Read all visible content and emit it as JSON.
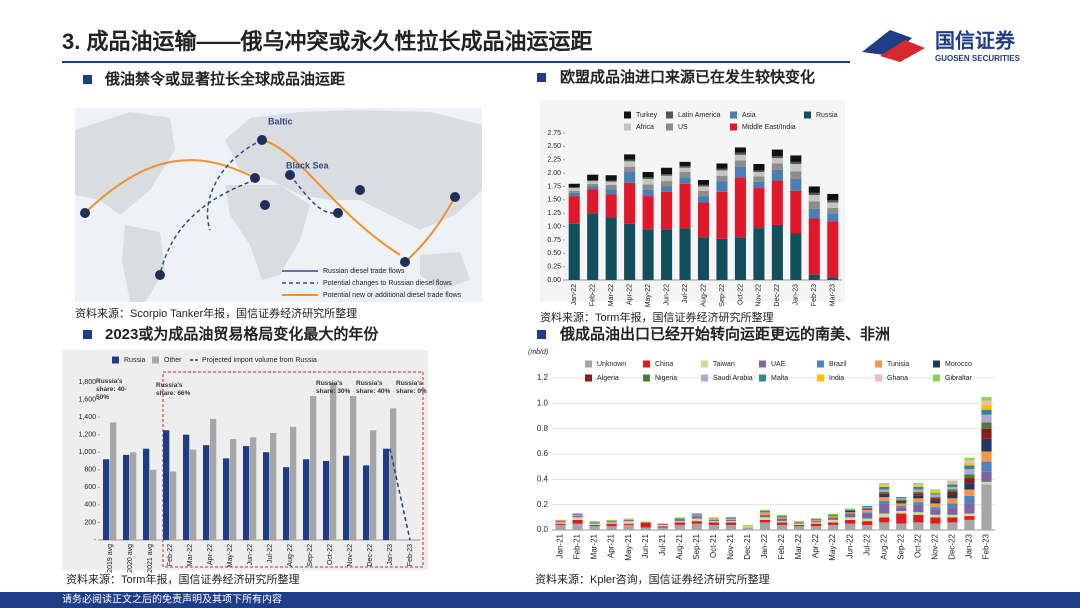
{
  "header": {
    "title": "3. 成品油运输——俄乌冲突或永久性拉长成品油运运距"
  },
  "logo": {
    "name": "国信证券",
    "english": "GUOSEN SECURITIES"
  },
  "footer": "请务必阅读正文之后的免责声明及其项下所有内容",
  "panels": [
    {
      "heading": "俄油禁令或显著拉长全球成品油运距",
      "source": "资料来源：Scorpio Tanker年报，国信证券经济研究所整理"
    },
    {
      "heading": "欧盟成品油进口来源已在发生较快变化",
      "source": "资料来源：Torm年报，国信证券经济研究所整理"
    },
    {
      "heading": "2023或为成品油贸易格局变化最大的年份",
      "source": "资料来源：Torm年报，国信证券经济研究所整理"
    },
    {
      "heading": "俄成品油出口已经开始转向运距更远的南美、非洲",
      "source": "资料来源：Kpler咨询，国信证券经济研究所整理"
    }
  ],
  "map": {
    "labels": [
      "Baltic",
      "Black Sea"
    ],
    "legend": [
      "Russian diesel trade flows",
      "Potential changes to Russian diesel flows",
      "Potential new or additional diesel trade flows"
    ]
  },
  "chart_data": [
    {
      "type": "bar",
      "stacked": true,
      "grid": false,
      "categories": [
        "Jan-22",
        "Feb-22",
        "Mar-22",
        "Apr-22",
        "May-22",
        "Jun-22",
        "Jul-22",
        "Aug-22",
        "Sep-22",
        "Oct-22",
        "Nov-22",
        "Dec-22",
        "Jan-23",
        "Feb-23",
        "Mar-23"
      ],
      "ylim": [
        0,
        2.75
      ],
      "yticks": [
        {
          "value": 0,
          "label": "0.00"
        },
        0.25,
        {
          "value": 0.5,
          "label": "0.50"
        },
        0.75,
        {
          "value": 1,
          "label": "1.00"
        },
        1.25,
        {
          "value": 1.5,
          "label": "1.50"
        },
        1.75,
        {
          "value": 2,
          "label": "2.00"
        },
        2.25,
        {
          "value": 2.5,
          "label": "2.50"
        },
        2.75
      ],
      "series": [
        {
          "name": "Turkey",
          "color": "#111111",
          "values": [
            0.06,
            0.1,
            0.1,
            0.1,
            0.1,
            0.12,
            0.08,
            0.09,
            0.1,
            0.1,
            0.12,
            0.12,
            0.12,
            0.12,
            0.12
          ]
        },
        {
          "name": "Latin America",
          "color": "#4d5e4a",
          "values": [
            0.02,
            0.02,
            0.02,
            0.03,
            0.03,
            0.03,
            0.03,
            0.03,
            0.03,
            0.04,
            0.03,
            0.04,
            0.04,
            0.04,
            0.04
          ]
        },
        {
          "name": "Asia",
          "color": "#4a7fb5",
          "values": [
            0.06,
            0.05,
            0.1,
            0.2,
            0.12,
            0.1,
            0.12,
            0.12,
            0.2,
            0.2,
            0.12,
            0.2,
            0.22,
            0.18,
            0.15
          ]
        },
        {
          "name": "Russia",
          "color": "#124e5c",
          "values": [
            1.05,
            1.25,
            1.17,
            1.05,
            0.95,
            0.95,
            0.97,
            0.8,
            0.77,
            0.8,
            0.97,
            1.03,
            0.87,
            0.1,
            0.05
          ]
        },
        {
          "name": "Africa",
          "color": "#c4c4c4",
          "values": [
            0.05,
            0.05,
            0.06,
            0.1,
            0.1,
            0.1,
            0.08,
            0.08,
            0.1,
            0.1,
            0.08,
            0.1,
            0.14,
            0.12,
            0.1
          ]
        },
        {
          "name": "US",
          "color": "#8c8c8c",
          "values": [
            0.04,
            0.05,
            0.08,
            0.1,
            0.1,
            0.1,
            0.1,
            0.1,
            0.1,
            0.12,
            0.1,
            0.12,
            0.14,
            0.14,
            0.1
          ]
        },
        {
          "name": "Middle East/India",
          "color": "#e0192a",
          "values": [
            0.52,
            0.45,
            0.43,
            0.77,
            0.62,
            0.7,
            0.83,
            0.65,
            0.88,
            1.12,
            0.75,
            0.83,
            0.8,
            1.05,
            1.05
          ]
        }
      ]
    },
    {
      "type": "bar",
      "stacked": false,
      "grid": false,
      "categories": [
        "2019 avg",
        "2020 avg",
        "2021 avg",
        "Feb-22",
        "Mar-22",
        "Apr-22",
        "May-22",
        "Jun-22",
        "Jul-22",
        "Aug-22",
        "Sep-22",
        "Oct-22",
        "Nov-22",
        "Dec-22",
        "Jan-23",
        "Feb-23"
      ],
      "ylim": [
        0,
        1800
      ],
      "yticks": [
        {
          "value": 0,
          "label": "-"
        },
        200,
        400,
        600,
        800,
        {
          "value": 1000,
          "label": "1,000"
        },
        {
          "value": 1200,
          "label": "1,200"
        },
        {
          "value": 1400,
          "label": "1,400"
        },
        {
          "value": 1600,
          "label": "1,600"
        },
        {
          "value": 1800,
          "label": "1,800"
        }
      ],
      "series": [
        {
          "name": "Russia",
          "color": "#1f3c88",
          "values": [
            920,
            970,
            1040,
            1250,
            1200,
            1080,
            930,
            1070,
            1000,
            830,
            920,
            900,
            960,
            850,
            1040,
            null
          ]
        },
        {
          "name": "Other",
          "color": "#a6a6a6",
          "values": [
            1340,
            1000,
            800,
            780,
            1030,
            1380,
            1150,
            1170,
            1220,
            1290,
            1640,
            1790,
            1640,
            1250,
            1500,
            null
          ]
        },
        {
          "name": "Projected import volume from Russia",
          "type": "line",
          "dashed": true,
          "color": "#1f3c88",
          "values": [
            null,
            null,
            null,
            null,
            null,
            null,
            null,
            null,
            null,
            null,
            null,
            null,
            null,
            null,
            1040,
            0
          ]
        }
      ],
      "annotations": [
        "Russia's share: 40-50%",
        "Russia's share: 66%",
        "Russia's share: 30%",
        "Russia's share: 40%",
        "Russia's share: 0%"
      ]
    },
    {
      "type": "bar",
      "stacked": true,
      "grid": true,
      "y_label": "(mb/d)",
      "categories": [
        "Jan-21",
        "Feb-21",
        "Mar-21",
        "Apr-21",
        "May-21",
        "Jun-21",
        "Jul-21",
        "Aug-21",
        "Sep-21",
        "Oct-21",
        "Nov-21",
        "Dec-21",
        "Jan-22",
        "Feb-22",
        "Mar-22",
        "Apr-22",
        "May-22",
        "Jun-22",
        "Jul-22",
        "Aug-22",
        "Sep-22",
        "Oct-22",
        "Nov-22",
        "Dec-22",
        "Jan-23",
        "Feb-23"
      ],
      "ylim": [
        0,
        1.2
      ],
      "yticks": [
        {
          "value": 0,
          "label": "0.0"
        },
        0.2,
        0.4,
        0.6,
        0.8,
        {
          "value": 1,
          "label": "1.0"
        },
        1.2
      ],
      "series": [
        {
          "name": "Unknown",
          "color": "#a6a6a6",
          "values": [
            0.04,
            0.05,
            0.03,
            0.03,
            0.04,
            0.02,
            0.02,
            0.04,
            0.05,
            0.04,
            0.04,
            0.02,
            0.06,
            0.04,
            0.03,
            0.03,
            0.04,
            0.05,
            0.04,
            0.06,
            0.05,
            0.06,
            0.05,
            0.06,
            0.08,
            0.36
          ]
        },
        {
          "name": "China",
          "color": "#e31a1c",
          "values": [
            0.01,
            0.03,
            0.01,
            0.02,
            0.01,
            0.04,
            0.01,
            0.02,
            0.02,
            0.02,
            0.02,
            0,
            0.02,
            0.02,
            0.01,
            0.02,
            0.02,
            0.03,
            0.03,
            0.04,
            0.08,
            0.06,
            0.05,
            0.04,
            0.03,
            0
          ]
        },
        {
          "name": "Taiwan",
          "color": "#c2e699",
          "values": [
            0.01,
            0.02,
            0.01,
            0.01,
            0.02,
            0.01,
            0.01,
            0.01,
            0.02,
            0.01,
            0.01,
            0.01,
            0.02,
            0.01,
            0.01,
            0.01,
            0.02,
            0.02,
            0.02,
            0.03,
            0.02,
            0.02,
            0.02,
            0.02,
            0.02,
            0.02
          ]
        },
        {
          "name": "UAE",
          "color": "#8064a2",
          "values": [
            0.01,
            0.01,
            0.01,
            0.01,
            0.01,
            0,
            0.01,
            0.01,
            0.02,
            0.01,
            0.01,
            0,
            0.02,
            0.02,
            0.01,
            0.01,
            0.02,
            0.03,
            0.04,
            0.08,
            0.03,
            0.06,
            0.04,
            0.06,
            0.08,
            0.08
          ]
        },
        {
          "name": "Brazil",
          "color": "#4f81bd",
          "values": [
            0,
            0,
            0,
            0,
            0,
            0,
            0,
            0,
            0,
            0,
            0,
            0,
            0,
            0,
            0,
            0,
            0,
            0,
            0.01,
            0.02,
            0.01,
            0.02,
            0.02,
            0.03,
            0.06,
            0.08
          ]
        },
        {
          "name": "Tunisia",
          "color": "#f79646",
          "values": [
            0.01,
            0.01,
            0,
            0,
            0,
            0,
            0,
            0,
            0.01,
            0.01,
            0.01,
            0,
            0.02,
            0.01,
            0,
            0.01,
            0.01,
            0.01,
            0.02,
            0.03,
            0.02,
            0.03,
            0.03,
            0.04,
            0.05,
            0.08
          ]
        },
        {
          "name": "Morocco",
          "color": "#1f3864",
          "values": [
            0,
            0,
            0,
            0,
            0,
            0,
            0,
            0,
            0,
            0,
            0,
            0,
            0,
            0,
            0,
            0,
            0,
            0.01,
            0.01,
            0.02,
            0.01,
            0.02,
            0.02,
            0.03,
            0.05,
            0.1
          ]
        },
        {
          "name": "Algeria",
          "color": "#8b1a1a",
          "values": [
            0,
            0,
            0,
            0,
            0,
            0,
            0,
            0,
            0,
            0,
            0,
            0,
            0,
            0,
            0,
            0,
            0,
            0,
            0,
            0.01,
            0.01,
            0.02,
            0.02,
            0.02,
            0.04,
            0.08
          ]
        },
        {
          "name": "Nigeria",
          "color": "#4e7a3c",
          "values": [
            0,
            0,
            0,
            0,
            0,
            0,
            0,
            0,
            0,
            0,
            0,
            0,
            0,
            0,
            0,
            0,
            0,
            0,
            0,
            0.01,
            0.01,
            0.01,
            0.01,
            0.02,
            0.03,
            0.05
          ]
        },
        {
          "name": "Saudi Arabia",
          "color": "#b4a7d6",
          "values": [
            0,
            0,
            0,
            0,
            0,
            0,
            0,
            0,
            0,
            0,
            0,
            0,
            0,
            0,
            0,
            0,
            0,
            0,
            0.01,
            0.02,
            0.01,
            0.02,
            0.02,
            0.02,
            0.04,
            0.06
          ]
        },
        {
          "name": "Malta",
          "color": "#31859c",
          "values": [
            0,
            0.01,
            0,
            0,
            0,
            0,
            0,
            0.01,
            0.01,
            0,
            0.01,
            0,
            0.01,
            0.01,
            0,
            0.01,
            0.01,
            0.01,
            0.01,
            0.02,
            0.01,
            0.02,
            0.01,
            0.02,
            0.03,
            0.04
          ]
        },
        {
          "name": "India",
          "color": "#ffc000",
          "values": [
            0,
            0,
            0,
            0,
            0,
            0,
            0,
            0,
            0,
            0,
            0,
            0,
            0,
            0,
            0,
            0,
            0,
            0,
            0,
            0.01,
            0,
            0.01,
            0.01,
            0.01,
            0.02,
            0.04
          ]
        },
        {
          "name": "Ghana",
          "color": "#f4b6c2",
          "values": [
            0,
            0,
            0,
            0,
            0,
            0,
            0,
            0,
            0,
            0,
            0,
            0,
            0,
            0,
            0,
            0,
            0,
            0,
            0,
            0.01,
            0,
            0.01,
            0.01,
            0.01,
            0.02,
            0.03
          ]
        },
        {
          "name": "Gibraltar",
          "color": "#92d050",
          "values": [
            0,
            0,
            0.01,
            0.01,
            0.01,
            0,
            0,
            0.01,
            0,
            0.01,
            0,
            0.01,
            0.01,
            0.01,
            0.01,
            0,
            0.01,
            0.01,
            0,
            0.01,
            0,
            0.01,
            0.01,
            0.01,
            0.02,
            0.03
          ]
        }
      ]
    }
  ]
}
